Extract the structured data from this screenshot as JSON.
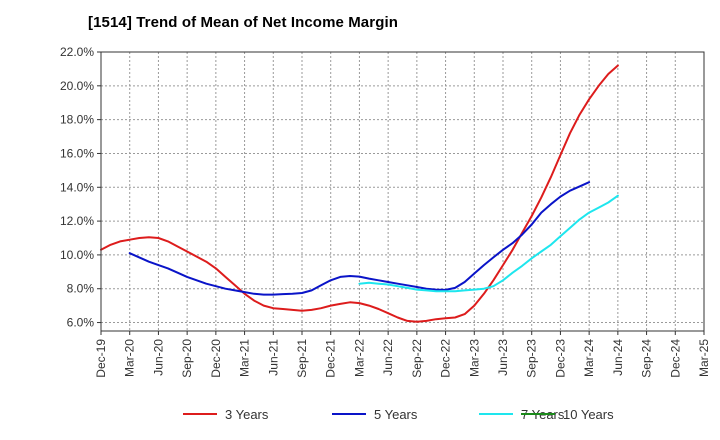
{
  "chart_data": {
    "type": "line",
    "title": "[1514]  Trend of Mean of Net Income Margin",
    "xlabel": "",
    "ylabel": "",
    "x_tick_labels": [
      "Dec-19",
      "Mar-20",
      "Jun-20",
      "Sep-20",
      "Dec-20",
      "Mar-21",
      "Jun-21",
      "Sep-21",
      "Dec-21",
      "Mar-22",
      "Jun-22",
      "Sep-22",
      "Dec-22",
      "Mar-23",
      "Jun-23",
      "Sep-23",
      "Dec-23",
      "Mar-24",
      "Jun-24",
      "Sep-24",
      "Dec-24",
      "Mar-25"
    ],
    "y_tick_labels": [
      "6.0%",
      "8.0%",
      "10.0%",
      "12.0%",
      "14.0%",
      "16.0%",
      "18.0%",
      "20.0%",
      "22.0%"
    ],
    "ylim": [
      5.5,
      22.0
    ],
    "grid": true,
    "legend_position": "bottom",
    "series": [
      {
        "name": "3 Years",
        "color": "#dd1c1c",
        "x_start_index": 0,
        "values": [
          10.3,
          10.6,
          10.8,
          10.9,
          11.0,
          11.05,
          11.0,
          10.8,
          10.5,
          10.2,
          9.9,
          9.6,
          9.2,
          8.7,
          8.2,
          7.7,
          7.3,
          7.0,
          6.85,
          6.8,
          6.75,
          6.7,
          6.75,
          6.85,
          7.0,
          7.1,
          7.2,
          7.15,
          7.0,
          6.8,
          6.55,
          6.3,
          6.1,
          6.05,
          6.1,
          6.2,
          6.25,
          6.3,
          6.5,
          7.0,
          7.7,
          8.5,
          9.4,
          10.3,
          11.3,
          12.3,
          13.4,
          14.6,
          15.9,
          17.2,
          18.3,
          19.2,
          20.0,
          20.7,
          21.2
        ]
      },
      {
        "name": "5 Years",
        "color": "#0a14c8",
        "x_start_index": 1,
        "values": [
          10.1,
          9.85,
          9.6,
          9.4,
          9.2,
          8.95,
          8.7,
          8.5,
          8.3,
          8.15,
          8.0,
          7.9,
          7.8,
          7.7,
          7.65,
          7.65,
          7.68,
          7.7,
          7.75,
          7.9,
          8.2,
          8.5,
          8.7,
          8.75,
          8.72,
          8.6,
          8.5,
          8.4,
          8.3,
          8.2,
          8.1,
          8.0,
          7.95,
          7.93,
          8.05,
          8.4,
          8.9,
          9.4,
          9.85,
          10.3,
          10.7,
          11.2,
          11.8,
          12.5,
          13.0,
          13.45,
          13.8,
          14.05,
          14.3
        ]
      },
      {
        "name": "7 Years",
        "color": "#1ee6ee",
        "x_start_index": 9,
        "values": [
          8.3,
          8.35,
          8.3,
          8.25,
          8.15,
          8.05,
          7.95,
          7.9,
          7.85,
          7.85,
          7.85,
          7.9,
          7.95,
          8.0,
          8.15,
          8.5,
          8.95,
          9.35,
          9.8,
          10.2,
          10.6,
          11.1,
          11.6,
          12.1,
          12.5,
          12.8,
          13.1,
          13.5
        ]
      },
      {
        "name": "10 Years",
        "color": "#1a8a1a",
        "x_start_index": 0,
        "values": []
      }
    ]
  }
}
